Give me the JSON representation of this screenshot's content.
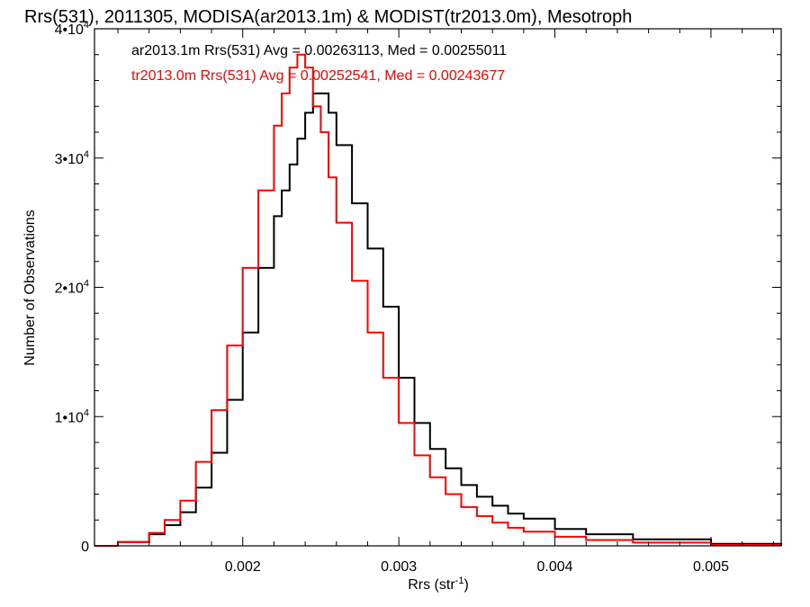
{
  "chart_data": {
    "type": "line",
    "title": "Rrs(531), 2011305, MODISA(ar2013.1m) & MODIST(tr2013.0m), Mesotroph",
    "xlabel": "Rrs (str",
    "xlabel_sup": "-1",
    "xlabel_close": ")",
    "ylabel": "Number of Observations",
    "xlim": [
      0.00105,
      0.00545
    ],
    "ylim": [
      0,
      40000
    ],
    "x_ticks": [
      {
        "value": 0.002,
        "label": "0.002"
      },
      {
        "value": 0.003,
        "label": "0.003"
      },
      {
        "value": 0.004,
        "label": "0.004"
      },
      {
        "value": 0.005,
        "label": "0.005"
      }
    ],
    "y_ticks": [
      {
        "value": 0,
        "mant": "0",
        "exp": ""
      },
      {
        "value": 10000,
        "mant": "1•10",
        "exp": "4"
      },
      {
        "value": 20000,
        "mant": "2•10",
        "exp": "4"
      },
      {
        "value": 30000,
        "mant": "3•10",
        "exp": "4"
      },
      {
        "value": 40000,
        "mant": "4•10",
        "exp": "4"
      }
    ],
    "grid": false,
    "legend_position": "top-left",
    "series": [
      {
        "name": "ar2013.1m Rrs(531) Avg = 0.00263113, Med = 0.00255011",
        "color": "#000000",
        "x": [
          0.00105,
          0.0012,
          0.0014,
          0.0015,
          0.0016,
          0.0017,
          0.0018,
          0.0019,
          0.002,
          0.0021,
          0.0022,
          0.00225,
          0.0023,
          0.00235,
          0.0024,
          0.00245,
          0.0025,
          0.00255,
          0.0026,
          0.0027,
          0.0028,
          0.0029,
          0.003,
          0.0031,
          0.0032,
          0.0033,
          0.0034,
          0.0035,
          0.0036,
          0.0037,
          0.0038,
          0.004,
          0.0042,
          0.0045,
          0.005,
          0.00545
        ],
        "y": [
          0,
          300,
          900,
          1600,
          2600,
          4500,
          7200,
          11300,
          16500,
          21500,
          25500,
          27500,
          29500,
          31500,
          33500,
          35000,
          35000,
          33500,
          31000,
          26500,
          23000,
          18500,
          13000,
          9500,
          7500,
          6000,
          4700,
          3800,
          3100,
          2500,
          2100,
          1300,
          900,
          500,
          150,
          0
        ]
      },
      {
        "name": "tr2013.0m Rrs(531) Avg = 0.00252541, Med = 0.00243677",
        "color": "#ff0000",
        "x": [
          0.00105,
          0.0012,
          0.0014,
          0.0015,
          0.0016,
          0.0017,
          0.0018,
          0.0019,
          0.002,
          0.0021,
          0.0022,
          0.00225,
          0.0023,
          0.00235,
          0.0024,
          0.00245,
          0.0025,
          0.00255,
          0.0026,
          0.0027,
          0.0028,
          0.0029,
          0.003,
          0.0031,
          0.0032,
          0.0033,
          0.0034,
          0.0035,
          0.0036,
          0.0037,
          0.0038,
          0.004,
          0.0042,
          0.0045,
          0.005,
          0.00545
        ],
        "y": [
          0,
          300,
          1000,
          2000,
          3500,
          6500,
          10500,
          15500,
          21500,
          27500,
          32500,
          35000,
          37000,
          38000,
          37000,
          34000,
          32000,
          28500,
          25000,
          20500,
          16500,
          13000,
          9500,
          7000,
          5300,
          4000,
          3000,
          2300,
          1800,
          1400,
          1100,
          700,
          450,
          250,
          80,
          0
        ]
      }
    ]
  }
}
